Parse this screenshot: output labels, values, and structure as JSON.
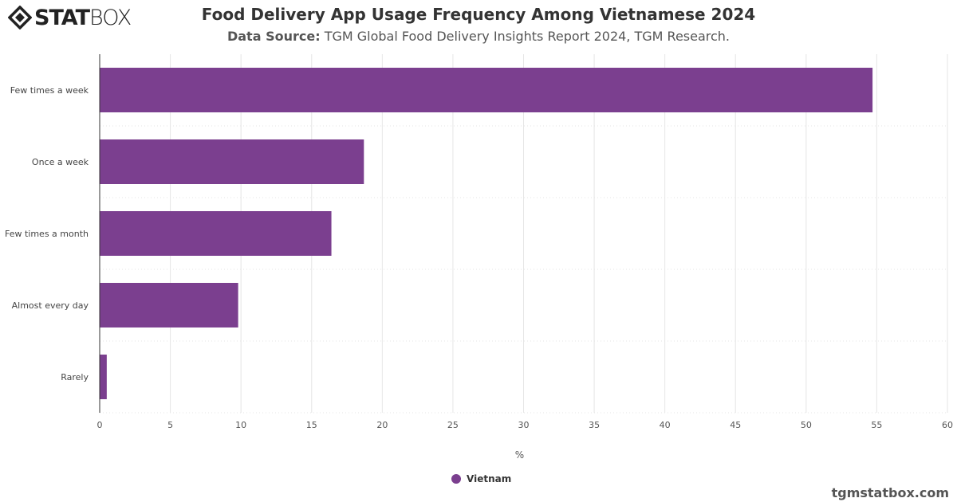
{
  "brand": {
    "logo_text_bold": "STAT",
    "logo_text_thin": "BOX",
    "credit": "tgmstatbox.com"
  },
  "header": {
    "title": "Food Delivery App Usage Frequency Among Vietnamese 2024",
    "subtitle_label": "Data Source:",
    "subtitle_text": "TGM Global Food Delivery Insights Report 2024, TGM Research."
  },
  "chart_data": {
    "type": "bar",
    "orientation": "horizontal",
    "categories": [
      "Few times a week",
      "Once a week",
      "Few times a month",
      "Almost every day",
      "Rarely"
    ],
    "series": [
      {
        "name": "Vietnam",
        "values": [
          54.7,
          18.7,
          16.4,
          9.8,
          0.5
        ],
        "color": "#7b3f8f"
      }
    ],
    "xlabel": "%",
    "xlim": [
      0,
      60
    ],
    "xticks": [
      0,
      5,
      10,
      15,
      20,
      25,
      30,
      35,
      40,
      45,
      50,
      55,
      60
    ],
    "grid": true,
    "legend": "bottom-center"
  }
}
